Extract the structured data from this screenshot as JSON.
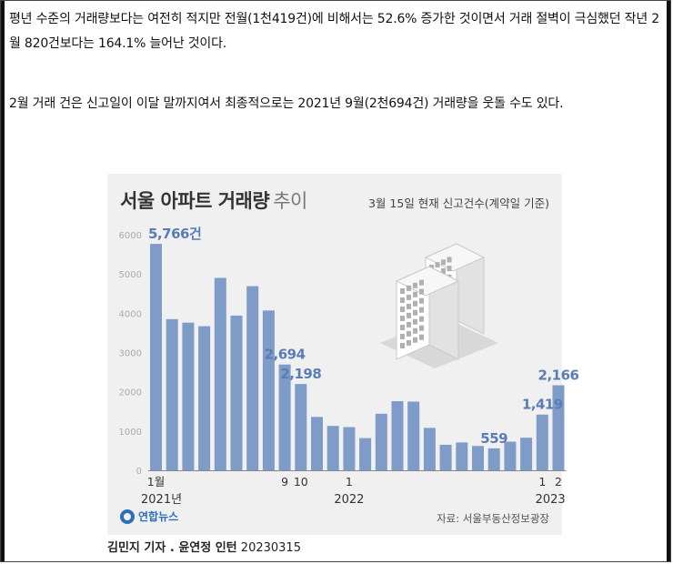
{
  "article": {
    "paragraph1": "평년 수준의 거래량보다는 여전히 적지만 전월(1천419건)에 비해서는 52.6% 증가한 것이면서 거래 절벽이 극심했던 작년 2월 820건보다는 164.1% 늘어난 것이다.",
    "paragraph2": "2월 거래 건은 신고일이 이달 말까지여서 최종적으로는 2021년 9월(2천694건) 거래량을 웃돌 수도 있다."
  },
  "figure": {
    "title_bold": "서울 아파트 거래량",
    "title_light": "추이",
    "note": "3월 15일 현재 신고건수(계약일 기준)",
    "source": "자료: 서울부동산정보광장",
    "logo_text": "연합뉴스",
    "credit_name": "김민지 기자 . 윤연정 인턴",
    "credit_date": "20230315"
  },
  "chart_data": {
    "type": "bar",
    "title": "서울 아파트 거래량 추이",
    "subtitle": "3월 15일 현재 신고건수(계약일 기준)",
    "ylim": [
      0,
      6000
    ],
    "yticks": [
      0,
      1000,
      2000,
      3000,
      4000,
      5000,
      6000
    ],
    "grid": false,
    "bar_color": "#7f9cc8",
    "label_color": "#5b7db5",
    "categories": [
      "2021-01",
      "2021-02",
      "2021-03",
      "2021-04",
      "2021-05",
      "2021-06",
      "2021-07",
      "2021-08",
      "2021-09",
      "2021-10",
      "2021-11",
      "2021-12",
      "2022-01",
      "2022-02",
      "2022-03",
      "2022-04",
      "2022-05",
      "2022-06",
      "2022-07",
      "2022-08",
      "2022-09",
      "2022-10",
      "2022-11",
      "2022-12",
      "2023-01",
      "2023-02"
    ],
    "values": [
      5766,
      3850,
      3760,
      3670,
      4900,
      3940,
      4690,
      4070,
      2694,
      2198,
      1360,
      1130,
      1100,
      820,
      1440,
      1760,
      1750,
      1080,
      650,
      710,
      620,
      559,
      730,
      830,
      1419,
      2166
    ],
    "data_labels": [
      {
        "index": 0,
        "text": "5,766건"
      },
      {
        "index": 8,
        "text": "2,694"
      },
      {
        "index": 9,
        "text": "2,198"
      },
      {
        "index": 21,
        "text": "559"
      },
      {
        "index": 24,
        "text": "1,419"
      },
      {
        "index": 25,
        "text": "2,166"
      }
    ],
    "x_tick_labels": [
      {
        "index": 0,
        "text": "1월"
      },
      {
        "index": 8,
        "text": "9"
      },
      {
        "index": 9,
        "text": "10"
      },
      {
        "index": 12,
        "text": "1"
      },
      {
        "index": 24,
        "text": "1"
      },
      {
        "index": 25,
        "text": "2"
      }
    ],
    "year_labels": [
      {
        "index": 0,
        "text": "2021년"
      },
      {
        "index": 12,
        "text": "2022"
      },
      {
        "index": 24.5,
        "text": "2023"
      }
    ]
  }
}
